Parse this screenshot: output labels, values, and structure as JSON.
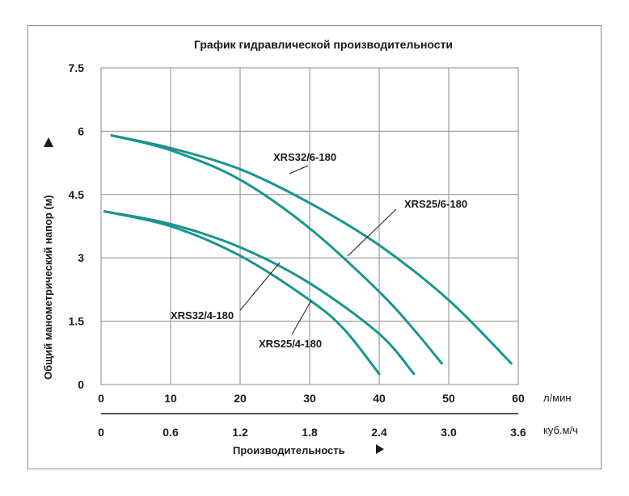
{
  "chart_data": {
    "type": "line",
    "title": "График гидравлической производительности",
    "xlabel": "Производительность",
    "ylabel": "Общий манометрический напор (м)",
    "x_unit": "л/мин",
    "x2_unit": "куб.м/ч",
    "xlim": [
      0,
      60
    ],
    "ylim": [
      0,
      7.5
    ],
    "x_ticks": [
      "0",
      "10",
      "20",
      "30",
      "40",
      "50",
      "60"
    ],
    "x2_ticks": [
      "0",
      "0.6",
      "1.2",
      "1.8",
      "2.4",
      "3.0",
      "3.6"
    ],
    "y_ticks": [
      "0",
      "1.5",
      "3",
      "4.5",
      "6",
      "7.5"
    ],
    "grid": true,
    "series": [
      {
        "name": "XRS32/6-180",
        "x": [
          1.5,
          10,
          20,
          30,
          40,
          50,
          59
        ],
        "y": [
          5.9,
          5.6,
          5.1,
          4.3,
          3.3,
          2.0,
          0.5
        ]
      },
      {
        "name": "XRS25/6-180",
        "x": [
          1.5,
          10,
          20,
          30,
          40,
          45,
          49
        ],
        "y": [
          5.9,
          5.55,
          4.85,
          3.7,
          2.2,
          1.3,
          0.5
        ]
      },
      {
        "name": "XRS32/4-180",
        "x": [
          0.5,
          10,
          20,
          30,
          40,
          45
        ],
        "y": [
          4.1,
          3.8,
          3.25,
          2.4,
          1.2,
          0.25
        ]
      },
      {
        "name": "XRS25/4-180",
        "x": [
          0.5,
          10,
          20,
          30,
          35,
          40
        ],
        "y": [
          4.1,
          3.75,
          3.05,
          2.0,
          1.3,
          0.25
        ]
      }
    ],
    "colors": {
      "line": "#1a9490",
      "grid": "#8a8a8a",
      "text": "#1a1a1a"
    }
  }
}
